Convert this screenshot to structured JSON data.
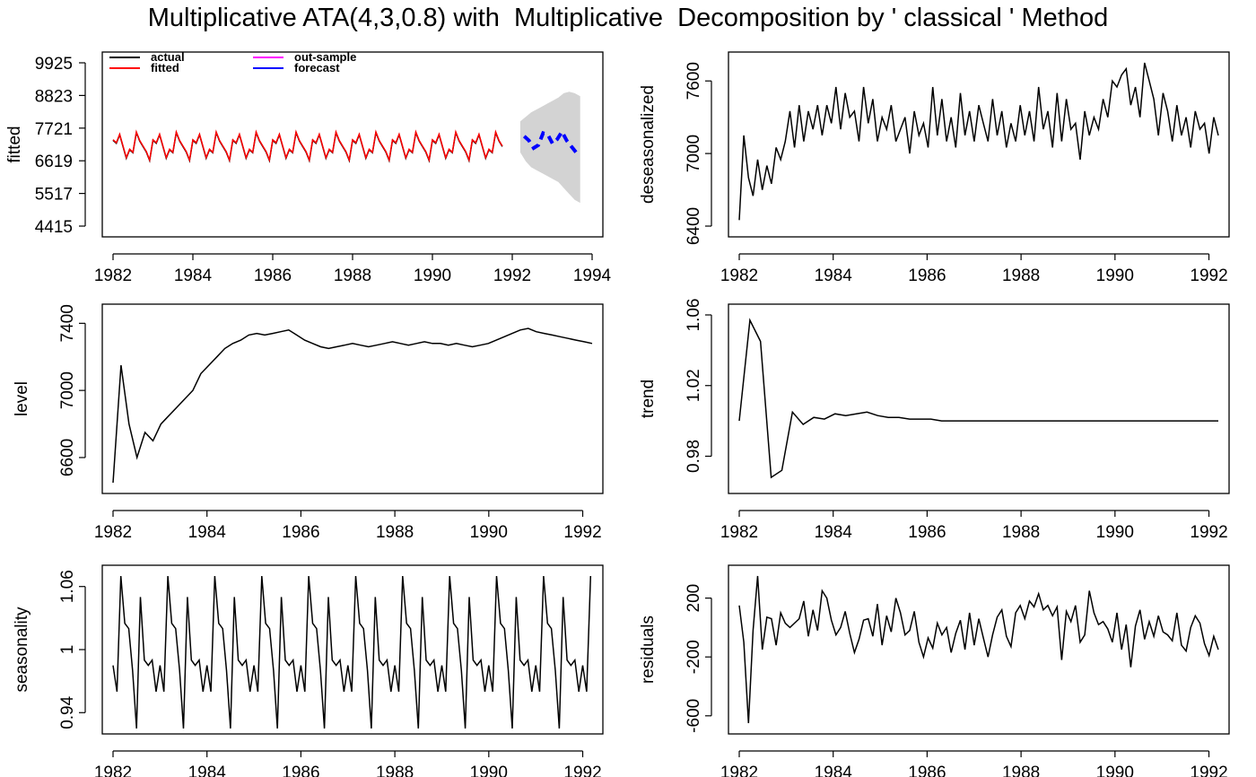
{
  "title": "Multiplicative ATA(4,3,0.8) with  Multiplicative  Decomposition by ' classical ' Method",
  "colors": {
    "actual": "#000000",
    "fitted": "#ff0000",
    "out_sample": "#ff00ff",
    "forecast": "#0000ff",
    "interval": "#d3d3d3"
  },
  "chart_data": [
    {
      "id": "fitted",
      "type": "line",
      "ylabel": "fitted",
      "xlim": [
        1982,
        1994
      ],
      "ylim": [
        4415,
        9925
      ],
      "xticks": [
        1982,
        1984,
        1986,
        1988,
        1990,
        1992,
        1994
      ],
      "yticks": [
        4415,
        5517,
        6619,
        7721,
        8823,
        9925
      ],
      "legend": {
        "placement": "top-left",
        "entries": [
          {
            "label": "actual",
            "color": "#000000"
          },
          {
            "label": "fitted",
            "color": "#ff0000"
          },
          {
            "label": "out-sample",
            "color": "#ff00ff"
          },
          {
            "label": "forecast",
            "color": "#0000ff"
          }
        ]
      },
      "series": [
        {
          "name": "actual",
          "start": 1982,
          "end": 1991.8,
          "mean": 7100,
          "amplitude": 420,
          "color": "#000000"
        },
        {
          "name": "fitted",
          "start": 1982,
          "end": 1991.8,
          "mean": 7120,
          "amplitude": 420,
          "color": "#ff0000"
        },
        {
          "name": "forecast",
          "start": 1992.3,
          "end": 1993.6,
          "values": [
            7450,
            7300,
            7050,
            7150,
            7550,
            7500,
            7200,
            7350,
            7600,
            7300,
            7100,
            6900
          ],
          "color": "#0000ff"
        },
        {
          "name": "interval",
          "start": 1992.2,
          "end": 1993.7,
          "lower": [
            6900,
            6600,
            6400,
            6300,
            6200,
            6100,
            6000,
            5900,
            5700,
            5500,
            5300,
            5200
          ],
          "upper": [
            7950,
            8100,
            8250,
            8350,
            8450,
            8550,
            8650,
            8750,
            8900,
            8950,
            8900,
            8800
          ],
          "color": "#d3d3d3"
        }
      ]
    },
    {
      "id": "deseasonalized",
      "type": "line",
      "ylabel": "deseasonalized",
      "xlim": [
        1982,
        1992.2
      ],
      "ylim": [
        6400,
        7750
      ],
      "xticks": [
        1982,
        1984,
        1986,
        1988,
        1990,
        1992
      ],
      "yticks": [
        6400,
        7000,
        7600
      ],
      "series": [
        {
          "name": "deseasonalized",
          "start": 1982,
          "end": 1992.2,
          "values": [
            6450,
            7150,
            6800,
            6650,
            6950,
            6700,
            6900,
            6750,
            7050,
            6950,
            7100,
            7350,
            7050,
            7400,
            7100,
            7350,
            7200,
            7400,
            7150,
            7400,
            7250,
            7550,
            7200,
            7500,
            7300,
            7350,
            7100,
            7550,
            7250,
            7450,
            7100,
            7300,
            7200,
            7400,
            7100,
            7200,
            7300,
            7000,
            7350,
            7150,
            7250,
            7050,
            7550,
            7150,
            7450,
            7100,
            7300,
            7050,
            7500,
            7150,
            7350,
            7100,
            7400,
            7250,
            7100,
            7450,
            7150,
            7350,
            7050,
            7250,
            7100,
            7400,
            7150,
            7350,
            7100,
            7550,
            7200,
            7350,
            7050,
            7500,
            7100,
            7450,
            7200,
            7250,
            6950,
            7350,
            7150,
            7300,
            7200,
            7450,
            7300,
            7600,
            7550,
            7650,
            7700,
            7400,
            7550,
            7300,
            7750,
            7600,
            7450,
            7150,
            7500,
            7350,
            7100,
            7400,
            7150,
            7300,
            7050,
            7350,
            7200,
            7250,
            7000,
            7300,
            7150
          ]
        }
      ]
    },
    {
      "id": "level",
      "type": "line",
      "ylabel": "level",
      "xlim": [
        1982,
        1992.2
      ],
      "ylim": [
        6450,
        7450
      ],
      "xticks": [
        1982,
        1984,
        1986,
        1988,
        1990,
        1992
      ],
      "yticks": [
        6600,
        7000,
        7400
      ],
      "series": [
        {
          "name": "level",
          "start": 1982,
          "end": 1992.2,
          "values": [
            6450,
            7150,
            6800,
            6600,
            6750,
            6700,
            6800,
            6850,
            6900,
            6950,
            7000,
            7100,
            7150,
            7200,
            7250,
            7280,
            7300,
            7330,
            7340,
            7330,
            7340,
            7350,
            7360,
            7330,
            7300,
            7280,
            7260,
            7250,
            7260,
            7270,
            7280,
            7270,
            7260,
            7270,
            7280,
            7290,
            7280,
            7270,
            7280,
            7290,
            7280,
            7280,
            7270,
            7280,
            7270,
            7260,
            7270,
            7280,
            7300,
            7320,
            7340,
            7360,
            7370,
            7350,
            7340,
            7330,
            7320,
            7310,
            7300,
            7290,
            7280
          ]
        }
      ]
    },
    {
      "id": "trend",
      "type": "line",
      "ylabel": "trend",
      "xlim": [
        1982,
        1992.2
      ],
      "ylim": [
        0.965,
        1.06
      ],
      "xticks": [
        1982,
        1984,
        1986,
        1988,
        1990,
        1992
      ],
      "yticks": [
        0.98,
        1.02,
        1.06
      ],
      "series": [
        {
          "name": "trend",
          "start": 1982,
          "end": 1992.2,
          "values": [
            1.0,
            1.057,
            1.045,
            0.968,
            0.972,
            1.005,
            0.998,
            1.002,
            1.001,
            1.004,
            1.003,
            1.004,
            1.005,
            1.003,
            1.002,
            1.002,
            1.001,
            1.001,
            1.001,
            1.0,
            1.0,
            1.0,
            1.0,
            1.0,
            1.0,
            1.0,
            1.0,
            1.0,
            1.0,
            1.0,
            1.0,
            1.0,
            1.0,
            1.0,
            1.0,
            1.0,
            1.0,
            1.0,
            1.0,
            1.0,
            1.0,
            1.0,
            1.0,
            1.0,
            1.0,
            1.0
          ]
        }
      ]
    },
    {
      "id": "seasonality",
      "type": "line",
      "ylabel": "seasonality",
      "xlim": [
        1982,
        1992.2
      ],
      "ylim": [
        0.93,
        1.07
      ],
      "xticks": [
        1982,
        1984,
        1986,
        1988,
        1990,
        1992
      ],
      "yticks": [
        0.94,
        1.0,
        1.06
      ],
      "series": [
        {
          "name": "seasonality",
          "start": 1982,
          "end": 1992.2,
          "pattern": [
            0.985,
            0.96,
            1.07,
            1.025,
            1.02,
            0.98,
            0.925,
            1.05,
            0.99,
            0.985,
            0.99,
            0.96
          ]
        }
      ]
    },
    {
      "id": "residuals",
      "type": "line",
      "ylabel": "residuals",
      "xlim": [
        1982,
        1992.2
      ],
      "ylim": [
        -650,
        350
      ],
      "xticks": [
        1982,
        1984,
        1986,
        1988,
        1990,
        1992
      ],
      "yticks": [
        -600,
        -200,
        200
      ],
      "series": [
        {
          "name": "residuals",
          "start": 1982,
          "end": 1992.2,
          "values": [
            150,
            -100,
            -650,
            -20,
            350,
            -150,
            70,
            60,
            -120,
            100,
            30,
            0,
            30,
            60,
            180,
            -60,
            120,
            -20,
            250,
            200,
            50,
            -50,
            0,
            110,
            -40,
            -170,
            -80,
            50,
            60,
            -60,
            160,
            -120,
            80,
            -30,
            200,
            100,
            -50,
            -20,
            110,
            -100,
            -200,
            -70,
            -140,
            30,
            -50,
            0,
            -170,
            -40,
            50,
            -150,
            100,
            -120,
            60,
            -70,
            -200,
            -50,
            70,
            120,
            -60,
            -130,
            100,
            150,
            60,
            180,
            140,
            230,
            120,
            150,
            80,
            140,
            -220,
            110,
            40,
            150,
            -100,
            -50,
            250,
            100,
            20,
            40,
            -10,
            -100,
            100,
            -150,
            20,
            -270,
            10,
            120,
            -80,
            40,
            -60,
            80,
            -30,
            -50,
            -90,
            100,
            -120,
            -160,
            0,
            80,
            30,
            -110,
            -190,
            -60,
            -150
          ]
        }
      ]
    }
  ]
}
